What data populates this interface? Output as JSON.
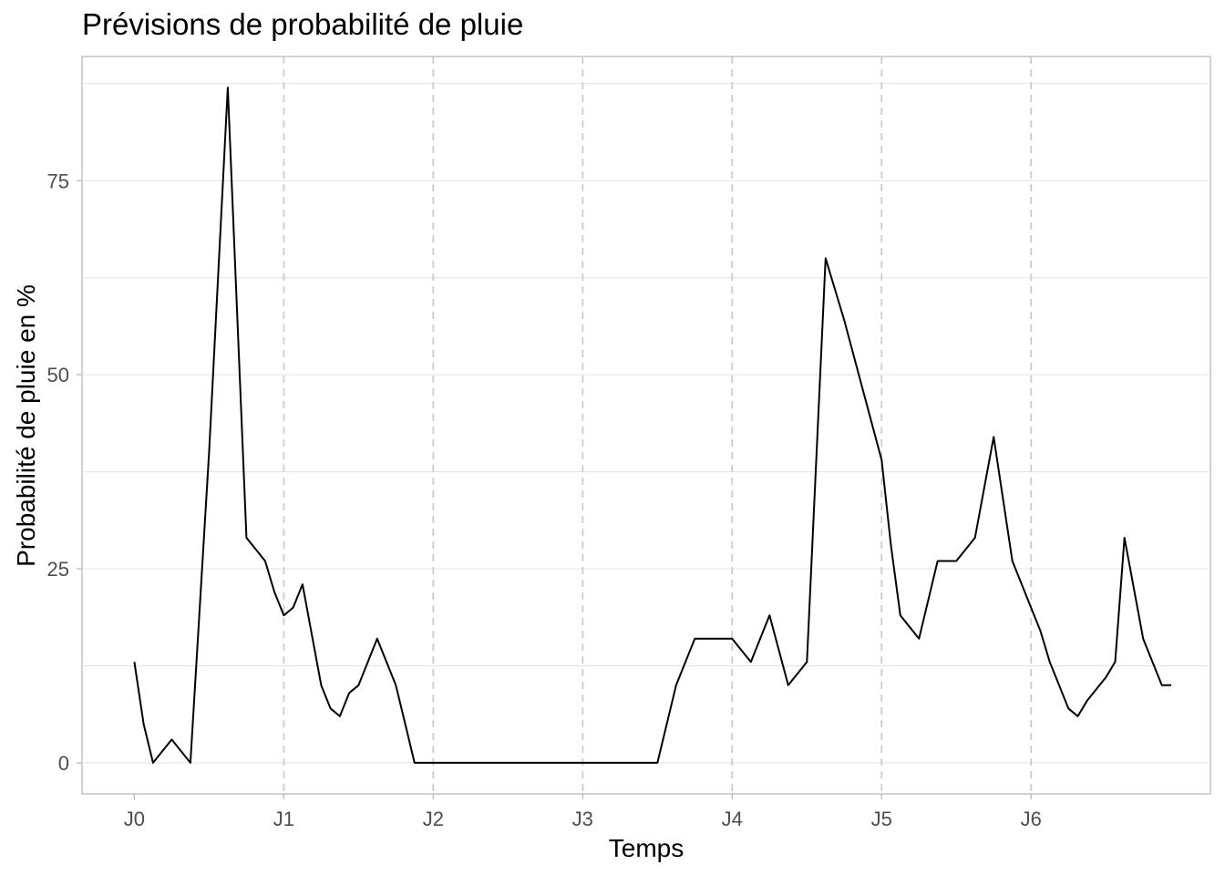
{
  "chart_data": {
    "type": "line",
    "title": "Prévisions de probabilité de pluie",
    "xlabel": "Temps",
    "ylabel": "Probabilité de pluie en %",
    "x_ticks": [
      "J0",
      "J1",
      "J2",
      "J3",
      "J4",
      "J5",
      "J6"
    ],
    "x_unit": "days",
    "xlim": [
      -0.35,
      7.2
    ],
    "y_ticks": [
      0,
      25,
      50,
      75
    ],
    "ylim": [
      -4,
      91
    ],
    "grid": {
      "horizontal": true,
      "day_separators": "dashed"
    },
    "series": [
      {
        "values": [
          [
            0.0,
            13
          ],
          [
            0.0625,
            5
          ],
          [
            0.125,
            0
          ],
          [
            0.25,
            3
          ],
          [
            0.375,
            0
          ],
          [
            0.5,
            40
          ],
          [
            0.625,
            87
          ],
          [
            0.75,
            29
          ],
          [
            0.875,
            26
          ],
          [
            0.9375,
            22
          ],
          [
            1.0,
            19
          ],
          [
            1.0625,
            20
          ],
          [
            1.125,
            23
          ],
          [
            1.25,
            10
          ],
          [
            1.3125,
            7
          ],
          [
            1.375,
            6
          ],
          [
            1.4375,
            9
          ],
          [
            1.5,
            10
          ],
          [
            1.625,
            16
          ],
          [
            1.75,
            10
          ],
          [
            1.8125,
            5
          ],
          [
            1.875,
            0
          ],
          [
            2.0,
            0
          ],
          [
            2.25,
            0
          ],
          [
            2.5,
            0
          ],
          [
            2.75,
            0
          ],
          [
            3.0,
            0
          ],
          [
            3.25,
            0
          ],
          [
            3.5,
            0
          ],
          [
            3.625,
            10
          ],
          [
            3.75,
            16
          ],
          [
            3.875,
            16
          ],
          [
            4.0,
            16
          ],
          [
            4.125,
            13
          ],
          [
            4.25,
            19
          ],
          [
            4.375,
            10
          ],
          [
            4.5,
            13
          ],
          [
            4.625,
            65
          ],
          [
            4.75,
            57
          ],
          [
            4.875,
            48
          ],
          [
            5.0,
            39
          ],
          [
            5.0625,
            28
          ],
          [
            5.125,
            19
          ],
          [
            5.25,
            16
          ],
          [
            5.3125,
            21
          ],
          [
            5.375,
            26
          ],
          [
            5.5,
            26
          ],
          [
            5.625,
            29
          ],
          [
            5.75,
            42
          ],
          [
            5.875,
            26
          ],
          [
            6.0,
            20
          ],
          [
            6.0625,
            17
          ],
          [
            6.125,
            13
          ],
          [
            6.1875,
            10
          ],
          [
            6.25,
            7
          ],
          [
            6.3125,
            6
          ],
          [
            6.375,
            8
          ],
          [
            6.5,
            11
          ],
          [
            6.5625,
            13
          ],
          [
            6.625,
            29
          ],
          [
            6.75,
            16
          ],
          [
            6.875,
            10
          ],
          [
            6.9375,
            10
          ]
        ]
      }
    ]
  }
}
